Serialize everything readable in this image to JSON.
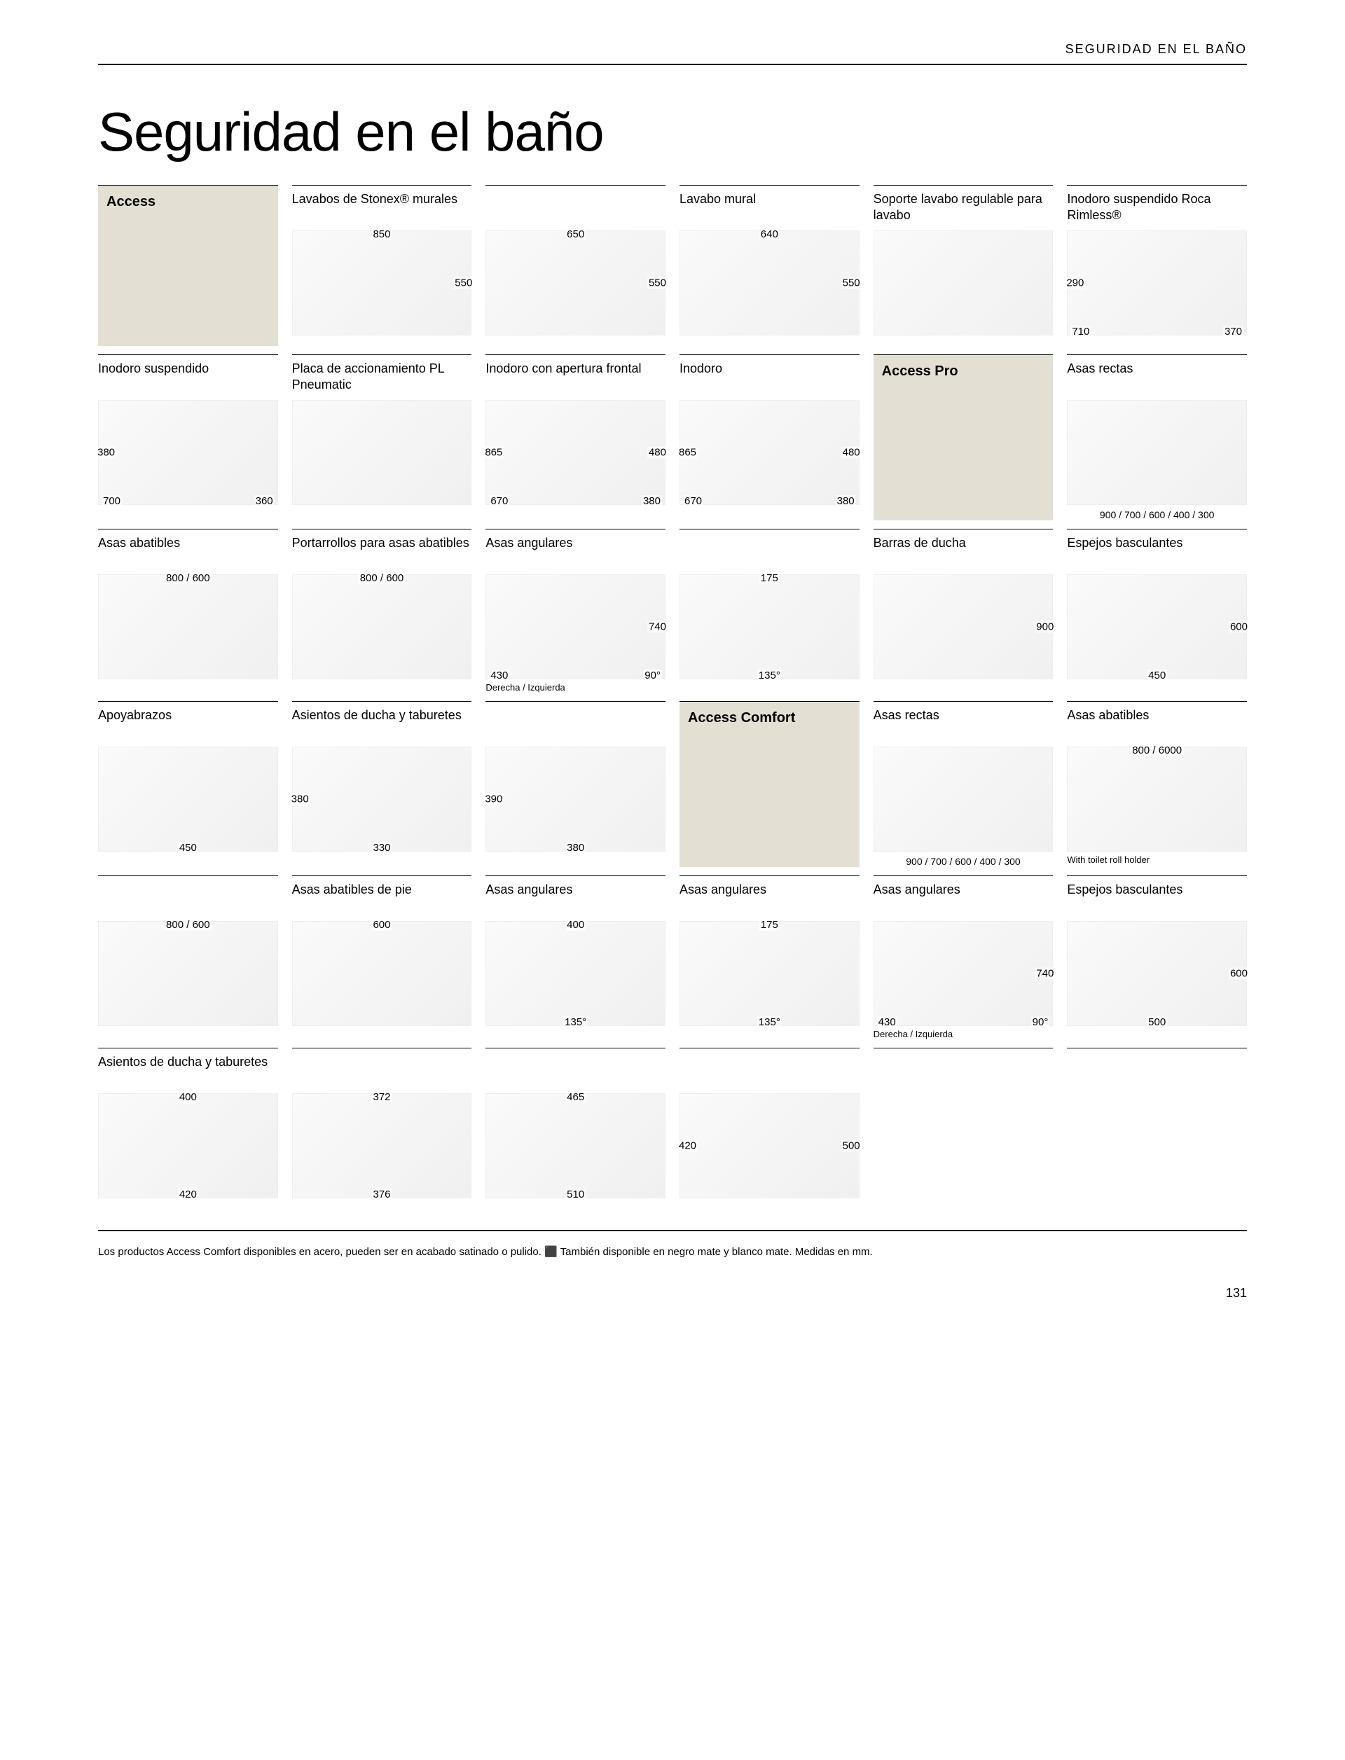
{
  "header": {
    "section": "SEGURIDAD EN EL BAÑO"
  },
  "title": "Seguridad en el baño",
  "categories": {
    "access": "Access",
    "access_pro": "Access Pro",
    "access_comfort": "Access Comfort"
  },
  "colors": {
    "category_bg": "#e3dfd2",
    "rule": "#000000"
  },
  "rows": [
    [
      {
        "type": "category",
        "key": "access"
      },
      {
        "title": "Lavabos de Stonex® murales",
        "dims": {
          "top": "850",
          "right": "550"
        }
      },
      {
        "title": "",
        "dims": {
          "top": "650",
          "right": "550"
        }
      },
      {
        "title": "Lavabo mural",
        "dims": {
          "top": "640",
          "right": "550"
        }
      },
      {
        "title": "Soporte lavabo regulable para lavabo",
        "dims": {}
      },
      {
        "title": "Inodoro suspendido Roca Rimless®",
        "dims": {
          "left": "290",
          "bl": "710",
          "br": "370"
        }
      }
    ],
    [
      {
        "title": "Inodoro suspendido",
        "dims": {
          "left": "380",
          "bl": "700",
          "br": "360"
        }
      },
      {
        "title": "Placa de accionamiento PL Pneumatic",
        "dims": {}
      },
      {
        "title": "Inodoro con apertura frontal",
        "dims": {
          "left": "865",
          "right": "480",
          "bl": "670",
          "br": "380"
        }
      },
      {
        "title": "Inodoro",
        "dims": {
          "left": "865",
          "right": "480",
          "bl": "670",
          "br": "380"
        }
      },
      {
        "type": "category",
        "key": "access_pro"
      },
      {
        "title": "Asas rectas",
        "caption": "900 / 700 / 600 / 400 / 300"
      }
    ],
    [
      {
        "title": "Asas abatibles",
        "dims": {
          "top": "800 / 600"
        }
      },
      {
        "title": "Portarrollos para asas abatibles",
        "dims": {
          "top": "800 / 600"
        }
      },
      {
        "title": "Asas angulares",
        "dims": {
          "right": "740",
          "br": "90°",
          "bl": "430"
        },
        "sub": "Derecha / Izquierda"
      },
      {
        "title": "",
        "dims": {
          "top": "175",
          "bottom": "135°"
        }
      },
      {
        "title": "Barras de ducha",
        "dims": {
          "right": "900"
        }
      },
      {
        "title": "Espejos basculantes",
        "dims": {
          "right": "600",
          "bottom": "450"
        }
      }
    ],
    [
      {
        "title": "Apoyabrazos",
        "dims": {
          "bottom": "450"
        }
      },
      {
        "title": "Asientos de ducha y taburetes",
        "dims": {
          "left": "380",
          "bottom": "330"
        }
      },
      {
        "title": "",
        "dims": {
          "left": "390",
          "bottom": "380"
        }
      },
      {
        "type": "category",
        "key": "access_comfort"
      },
      {
        "title": "Asas rectas",
        "caption": "900 / 700 / 600 / 400 / 300"
      },
      {
        "title": "Asas abatibles",
        "dims": {
          "top": "800 / 6000"
        },
        "sub": "With toilet roll holder"
      }
    ],
    [
      {
        "title": "",
        "dims": {
          "top": "800 / 600"
        }
      },
      {
        "title": "Asas abatibles de pie",
        "dims": {
          "top": "600"
        }
      },
      {
        "title": "Asas angulares",
        "dims": {
          "top": "400",
          "bottom": "135°"
        }
      },
      {
        "title": "Asas angulares",
        "dims": {
          "top": "175",
          "bottom": "135°"
        }
      },
      {
        "title": "Asas angulares",
        "dims": {
          "right": "740",
          "br": "90°",
          "bl": "430"
        },
        "sub": "Derecha / Izquierda"
      },
      {
        "title": "Espejos basculantes",
        "dims": {
          "right": "600",
          "bottom": "500"
        }
      }
    ],
    [
      {
        "title": "Asientos de ducha y taburetes",
        "dims": {
          "top": "400",
          "bottom": "420"
        }
      },
      {
        "title": "",
        "dims": {
          "top": "372",
          "bottom": "376"
        }
      },
      {
        "title": "",
        "dims": {
          "top": "465",
          "bottom": "510"
        }
      },
      {
        "title": "",
        "dims": {
          "left": "420",
          "right": "500"
        }
      },
      {
        "type": "empty"
      },
      {
        "type": "empty"
      }
    ]
  ],
  "footer": "Los productos Access Comfort disponibles en acero, pueden ser en acabado satinado o pulido.  ⬛  También disponible en negro mate y blanco mate. Medidas en mm.",
  "page_number": "131"
}
